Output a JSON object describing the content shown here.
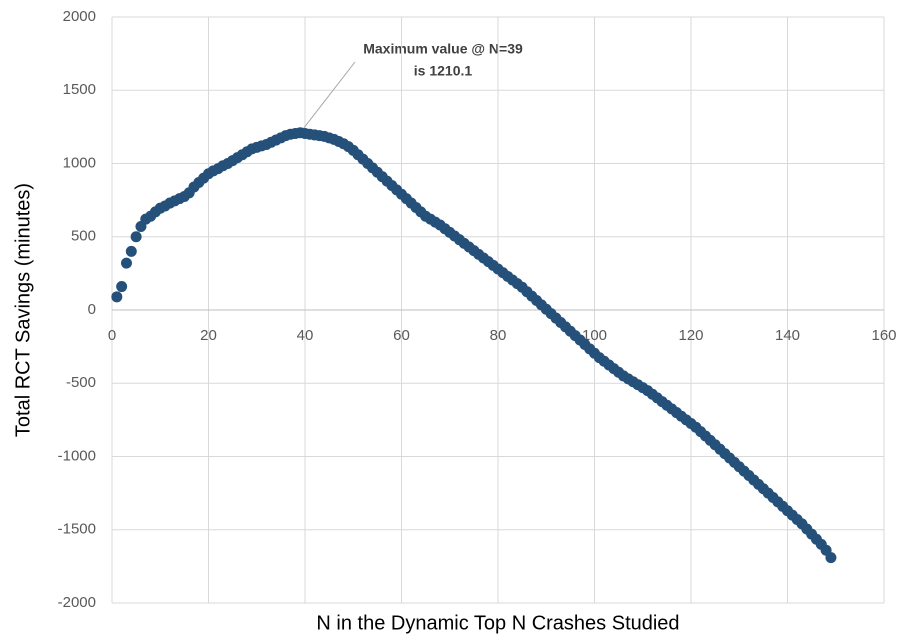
{
  "chart_data": {
    "type": "scatter",
    "x_label": "N in the Dynamic Top N Crashes Studied",
    "y_label": "Total RCT Savings (minutes)",
    "annotation": [
      "Maximum value @ N=39",
      "is 1210.1"
    ],
    "color": "#24507a",
    "grid": true,
    "xlim": [
      0,
      160
    ],
    "xticks": [
      0,
      20,
      40,
      60,
      80,
      100,
      120,
      140,
      160
    ],
    "ylim": [
      -2000,
      2000
    ],
    "yticks": [
      -2000,
      -1500,
      -1000,
      -500,
      0,
      500,
      1000,
      1500,
      2000
    ],
    "x": [
      1,
      2,
      3,
      4,
      5,
      6,
      7,
      8,
      9,
      10,
      11,
      12,
      13,
      14,
      15,
      16,
      17,
      18,
      19,
      20,
      21,
      22,
      23,
      24,
      25,
      26,
      27,
      28,
      29,
      30,
      31,
      32,
      33,
      34,
      35,
      36,
      37,
      38,
      39,
      40,
      41,
      42,
      43,
      44,
      45,
      46,
      47,
      48,
      49,
      50,
      51,
      52,
      53,
      54,
      55,
      56,
      57,
      58,
      59,
      60,
      61,
      62,
      63,
      64,
      65,
      66,
      67,
      68,
      69,
      70,
      71,
      72,
      73,
      74,
      75,
      76,
      77,
      78,
      79,
      80,
      81,
      82,
      83,
      84,
      85,
      86,
      87,
      88,
      89,
      90,
      91,
      92,
      93,
      94,
      95,
      96,
      97,
      98,
      99,
      100,
      101,
      102,
      103,
      104,
      105,
      106,
      107,
      108,
      109,
      110,
      111,
      112,
      113,
      114,
      115,
      116,
      117,
      118,
      119,
      120,
      121,
      122,
      123,
      124,
      125,
      126,
      127,
      128,
      129,
      130,
      131,
      132,
      133,
      134,
      135,
      136,
      137,
      138,
      139,
      140,
      141,
      142,
      143,
      144,
      145,
      146,
      147,
      148,
      149
    ],
    "values": [
      90,
      160,
      320,
      400,
      500,
      570,
      620,
      640,
      670,
      695,
      710,
      730,
      745,
      760,
      775,
      800,
      840,
      870,
      900,
      930,
      950,
      965,
      985,
      1000,
      1020,
      1040,
      1060,
      1080,
      1100,
      1110,
      1120,
      1130,
      1145,
      1160,
      1175,
      1190,
      1200,
      1205,
      1210.1,
      1205,
      1200,
      1195,
      1190,
      1185,
      1175,
      1165,
      1150,
      1135,
      1115,
      1090,
      1060,
      1030,
      1000,
      970,
      940,
      910,
      880,
      850,
      820,
      790,
      760,
      730,
      700,
      670,
      640,
      620,
      600,
      580,
      555,
      530,
      505,
      480,
      455,
      430,
      405,
      380,
      355,
      330,
      305,
      280,
      255,
      230,
      205,
      180,
      155,
      125,
      95,
      65,
      35,
      5,
      -25,
      -55,
      -85,
      -115,
      -145,
      -175,
      -205,
      -235,
      -265,
      -295,
      -325,
      -350,
      -375,
      -400,
      -425,
      -450,
      -470,
      -490,
      -510,
      -530,
      -550,
      -575,
      -600,
      -625,
      -650,
      -675,
      -700,
      -725,
      -750,
      -775,
      -800,
      -830,
      -860,
      -890,
      -920,
      -950,
      -980,
      -1010,
      -1040,
      -1070,
      -1100,
      -1130,
      -1160,
      -1190,
      -1220,
      -1250,
      -1280,
      -1310,
      -1340,
      -1370,
      -1400,
      -1430,
      -1460,
      -1495,
      -1530,
      -1565,
      -1600,
      -1640,
      -1690
    ]
  }
}
